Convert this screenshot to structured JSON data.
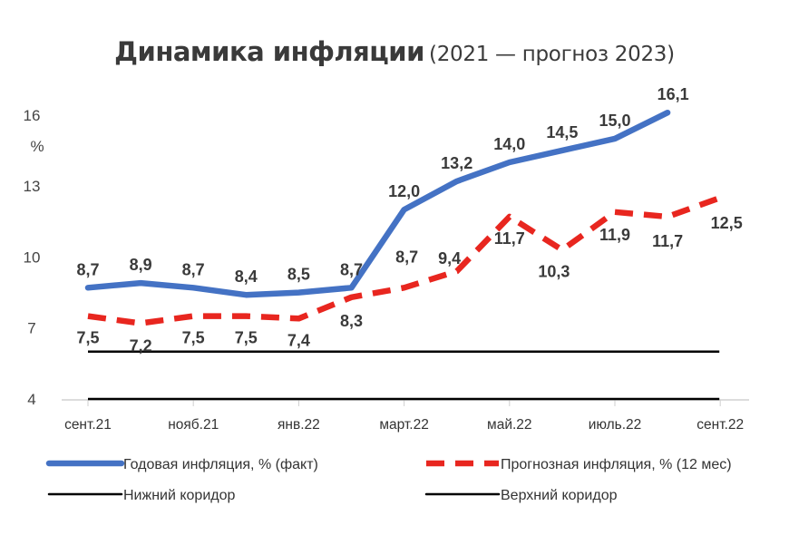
{
  "chart_data": {
    "type": "line",
    "title": "Динамика инфляции",
    "subtitle": "(2021 — прогноз 2023)",
    "ylabel": "%",
    "y_ticks": [
      4,
      7,
      10,
      13,
      16
    ],
    "ylim": [
      4,
      16.5
    ],
    "x_tick_labels": [
      "сент.21",
      "нояб.21",
      "янв.22",
      "март.22",
      "май.22",
      "июль.22",
      "сент.22"
    ],
    "legend_position": "bottom",
    "grid": false,
    "series": [
      {
        "name": "Годовая инфляция, % (факт)",
        "style": "solid",
        "color": "#4472c4",
        "x": [
          0,
          1,
          2,
          3,
          4,
          5,
          6,
          7,
          8,
          9,
          10,
          11
        ],
        "values": [
          8.7,
          8.9,
          8.7,
          8.4,
          8.5,
          8.7,
          12.0,
          13.2,
          14.0,
          14.5,
          15.0,
          16.1
        ],
        "labels": [
          "8,7",
          "8,9",
          "8,7",
          "8,4",
          "8,5",
          "8,7",
          "12,0",
          "13,2",
          "14,0",
          "14,5",
          "15,0",
          "16,1"
        ]
      },
      {
        "name": "Прогнозная инфляция, % (12 мес)",
        "style": "dashed",
        "color": "#e8261f",
        "x": [
          0,
          1,
          2,
          3,
          4,
          5,
          6,
          7,
          8,
          9,
          10,
          11,
          12
        ],
        "values": [
          7.5,
          7.2,
          7.5,
          7.5,
          7.4,
          8.3,
          8.7,
          9.4,
          11.7,
          10.3,
          11.9,
          11.7,
          12.5
        ],
        "labels": [
          "7,5",
          "7,2",
          "7,5",
          "7,5",
          "7,4",
          "8,3",
          "8,7",
          "9,4",
          "11,7",
          "10,3",
          "11,9",
          "11,7",
          "12,5"
        ]
      },
      {
        "name": "Нижний коридор",
        "style": "solid",
        "color": "#000000",
        "x": [
          0,
          12
        ],
        "values": [
          4,
          4
        ]
      },
      {
        "name": "Верхний коридор",
        "style": "solid",
        "color": "#000000",
        "x": [
          0,
          12
        ],
        "values": [
          6,
          6
        ]
      }
    ]
  }
}
